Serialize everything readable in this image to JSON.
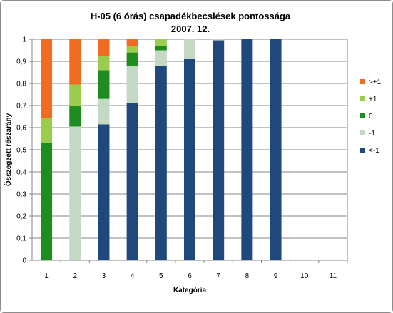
{
  "chart_data": {
    "type": "bar",
    "stacked": true,
    "title": "H-05 (6 órás) csapadékbecslések pontossága",
    "subtitle": "2007. 12.",
    "xlabel": "Kategória",
    "ylabel": "Összegzett részarány",
    "categories": [
      "1",
      "2",
      "3",
      "4",
      "5",
      "6",
      "7",
      "8",
      "9",
      "10",
      "11"
    ],
    "ylim": [
      0,
      1
    ],
    "yticks": [
      "0",
      "0,1",
      "0,2",
      "0,3",
      "0,4",
      "0,5",
      "0,6",
      "0,7",
      "0,8",
      "0,9",
      "1"
    ],
    "grid": true,
    "legend_position": "right",
    "series": [
      {
        "name": "<-1",
        "color": "#1F497D",
        "values": [
          0,
          0,
          0.615,
          0.71,
          0.88,
          0.91,
          0.995,
          1.0,
          1.0,
          0,
          0
        ]
      },
      {
        "name": "-1",
        "color": "#C4D9C4",
        "values": [
          0,
          0.605,
          0.115,
          0.17,
          0.07,
          0.09,
          0.005,
          0,
          0,
          0,
          0
        ]
      },
      {
        "name": "0",
        "color": "#1E8C1E",
        "values": [
          0.53,
          0.095,
          0.13,
          0.06,
          0.02,
          0,
          0,
          0,
          0,
          0,
          0
        ]
      },
      {
        "name": "+1",
        "color": "#9ACD4E",
        "values": [
          0.115,
          0.095,
          0.065,
          0.03,
          0.03,
          0,
          0,
          0,
          0,
          0,
          0
        ]
      },
      {
        "name": ">+1",
        "color": "#F26B23",
        "values": [
          0.355,
          0.205,
          0.075,
          0.03,
          0,
          0,
          0,
          0,
          0,
          0,
          0
        ]
      }
    ]
  }
}
